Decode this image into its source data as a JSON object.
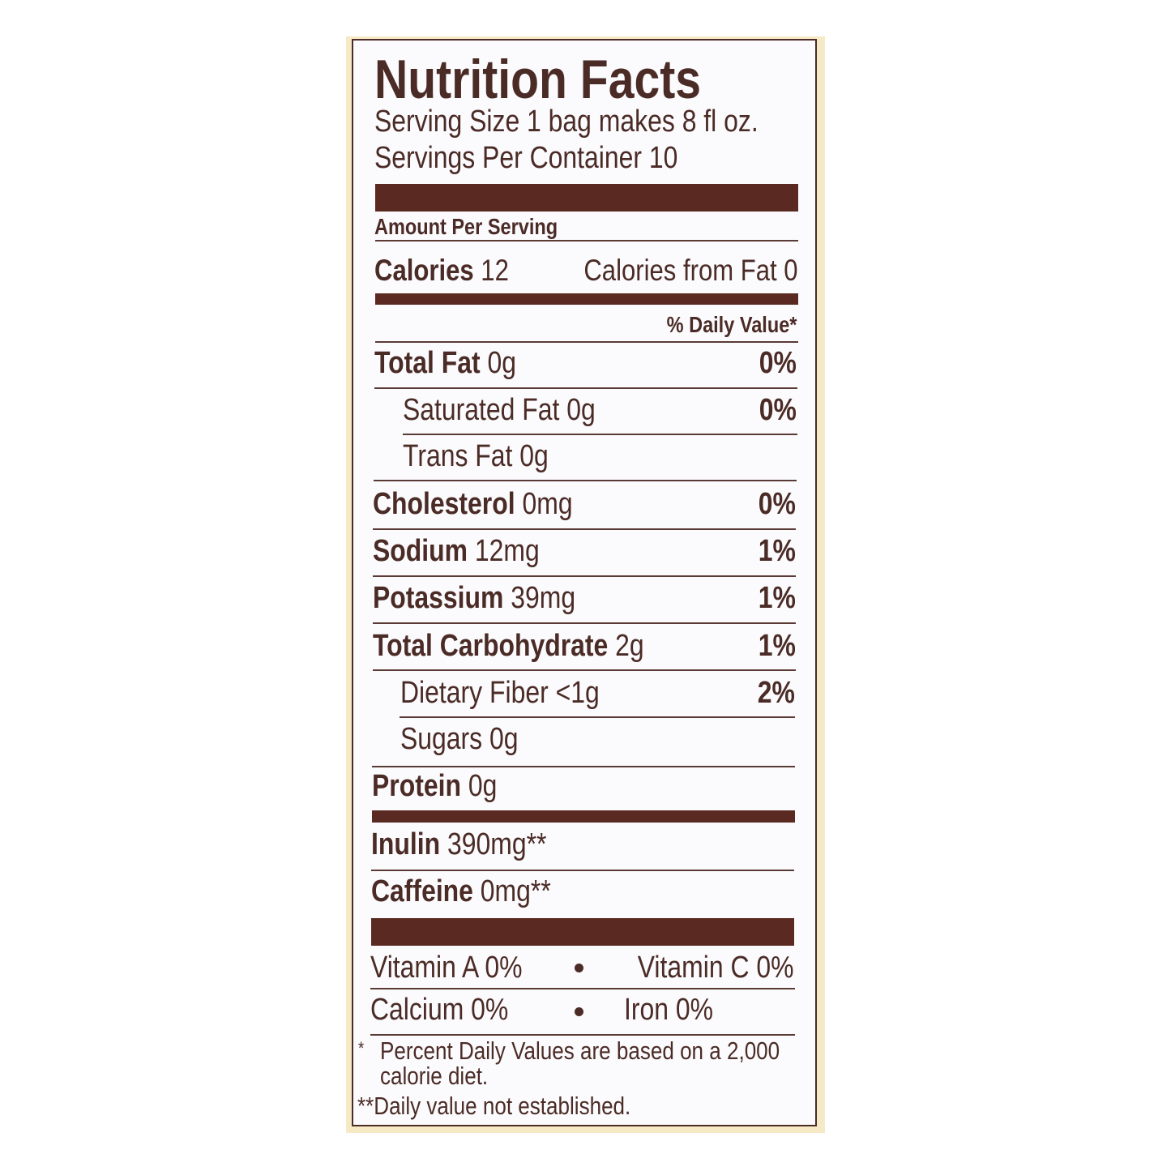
{
  "title": "Nutrition Facts",
  "serving_size": "Serving Size 1 bag makes 8 fl oz.",
  "servings_per_container": "Servings Per Container 10",
  "amount_per_serving": "Amount Per Serving",
  "calories": {
    "label": "Calories",
    "value": "12",
    "from_fat": "Calories from Fat 0"
  },
  "daily_value_header": "% Daily Value*",
  "nutrients": [
    {
      "label": "Total Fat",
      "amount": "0g",
      "pct": "0%"
    },
    {
      "label": "Saturated Fat",
      "amount": "0g",
      "pct": "0%"
    },
    {
      "label": "Trans Fat",
      "amount": "0g"
    },
    {
      "label": "Cholesterol",
      "amount": "0mg",
      "pct": "0%"
    },
    {
      "label": "Sodium",
      "amount": "12mg",
      "pct": "1%"
    },
    {
      "label": "Potassium",
      "amount": "39mg",
      "pct": "1%"
    },
    {
      "label": "Total Carbohydrate",
      "amount": "2g",
      "pct": "1%"
    },
    {
      "label": "Dietary Fiber",
      "amount": "<1g",
      "pct": "2%"
    },
    {
      "label": "Sugars",
      "amount": "0g"
    },
    {
      "label": "Protein",
      "amount": "0g"
    }
  ],
  "extras": [
    {
      "label": "Inulin",
      "amount": "390mg**"
    },
    {
      "label": "Caffeine",
      "amount": "0mg**"
    }
  ],
  "vitamins": [
    [
      "Vitamin A 0%",
      "Vitamin C 0%"
    ],
    [
      "Calcium 0%",
      "Iron 0%"
    ]
  ],
  "footnotes": {
    "star": "*",
    "line1": "Percent Daily Values are based on a 2,000",
    "line2": "calorie diet.",
    "double_star": "**Daily value not established."
  },
  "colors": {
    "ink": "#4b2b26",
    "bar": "#5a2a22",
    "panel": "#f6e9c6"
  }
}
